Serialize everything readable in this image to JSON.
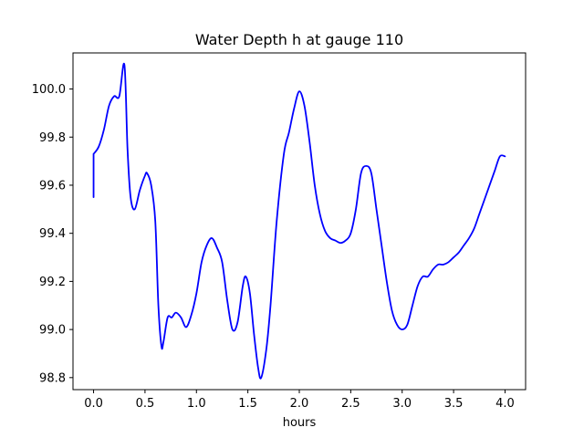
{
  "chart_data": {
    "type": "line",
    "title": "Water Depth h at gauge 110",
    "xlabel": "hours",
    "ylabel": "",
    "xlim": [
      -0.2,
      4.2
    ],
    "ylim": [
      98.75,
      100.15
    ],
    "xticks": [
      "0.0",
      "0.5",
      "1.0",
      "1.5",
      "2.0",
      "2.5",
      "3.0",
      "3.5",
      "4.0"
    ],
    "yticks": [
      "98.8",
      "99.0",
      "99.2",
      "99.4",
      "99.6",
      "99.8",
      "100.0"
    ],
    "grid": false,
    "series": [
      {
        "color": "#0000ff",
        "x": [
          0.0,
          0.0,
          0.05,
          0.1,
          0.15,
          0.2,
          0.25,
          0.3,
          0.33,
          0.36,
          0.4,
          0.45,
          0.5,
          0.52,
          0.56,
          0.6,
          0.63,
          0.66,
          0.68,
          0.72,
          0.76,
          0.8,
          0.85,
          0.9,
          0.95,
          1.0,
          1.05,
          1.1,
          1.15,
          1.2,
          1.25,
          1.3,
          1.35,
          1.4,
          1.45,
          1.48,
          1.52,
          1.56,
          1.6,
          1.63,
          1.68,
          1.72,
          1.78,
          1.85,
          1.9,
          1.95,
          2.0,
          2.05,
          2.1,
          2.15,
          2.2,
          2.25,
          2.3,
          2.35,
          2.4,
          2.45,
          2.5,
          2.55,
          2.6,
          2.65,
          2.7,
          2.75,
          2.8,
          2.85,
          2.9,
          2.95,
          3.0,
          3.05,
          3.1,
          3.15,
          3.2,
          3.25,
          3.3,
          3.35,
          3.4,
          3.45,
          3.5,
          3.55,
          3.6,
          3.65,
          3.7,
          3.75,
          3.8,
          3.85,
          3.9,
          3.95,
          4.0
        ],
        "y": [
          99.55,
          99.73,
          99.76,
          99.83,
          99.93,
          99.97,
          99.97,
          100.1,
          99.75,
          99.55,
          99.5,
          99.58,
          99.64,
          99.65,
          99.6,
          99.45,
          99.1,
          98.93,
          98.95,
          99.05,
          99.05,
          99.07,
          99.05,
          99.01,
          99.06,
          99.15,
          99.28,
          99.35,
          99.38,
          99.34,
          99.28,
          99.12,
          99.0,
          99.03,
          99.18,
          99.22,
          99.15,
          98.98,
          98.84,
          98.8,
          98.92,
          99.1,
          99.45,
          99.73,
          99.82,
          99.92,
          99.99,
          99.93,
          99.78,
          99.6,
          99.48,
          99.41,
          99.38,
          99.37,
          99.36,
          99.37,
          99.4,
          99.5,
          99.65,
          99.68,
          99.65,
          99.5,
          99.35,
          99.2,
          99.08,
          99.02,
          99.0,
          99.02,
          99.1,
          99.18,
          99.22,
          99.22,
          99.25,
          99.27,
          99.27,
          99.28,
          99.3,
          99.32,
          99.35,
          99.38,
          99.42,
          99.48,
          99.54,
          99.6,
          99.66,
          99.72,
          99.72
        ]
      }
    ]
  }
}
